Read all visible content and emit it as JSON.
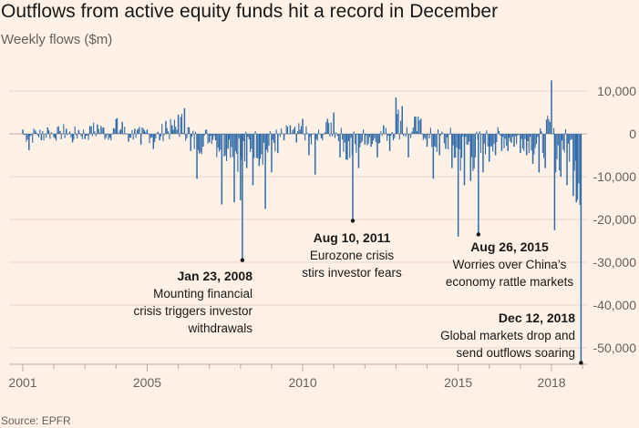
{
  "title": "Outflows from active equity funds hit a record in December",
  "subtitle": "Weekly flows ($m)",
  "source": "Source: EPFR",
  "colors": {
    "background": "#fff1e5",
    "bars": "#2e6aa8",
    "grid": "#e2d7cc",
    "text": "#33302e"
  },
  "chart_data": {
    "type": "bar",
    "title": "Outflows from active equity funds hit a record in December",
    "ylabel": "Weekly flows ($m)",
    "xlabel": "",
    "xlim": [
      2000.8,
      2019.0
    ],
    "ylim": [
      -52000,
      12000
    ],
    "grid": true,
    "ytick_values": [
      10000,
      0,
      -10000,
      -20000,
      -30000,
      -40000,
      -50000
    ],
    "ytick_labels": [
      "10,000",
      "0",
      "-10,000",
      "-20,000",
      "-30,000",
      "-40,000",
      "-50,000"
    ],
    "xtick_values": [
      2001,
      2005,
      2010,
      2015,
      2018
    ],
    "xtick_labels": [
      "2001",
      "2005",
      "2010",
      "2015",
      "2018"
    ],
    "x": [
      2001.0,
      2001.2,
      2001.4,
      2001.6,
      2001.8,
      2002.0,
      2002.2,
      2002.4,
      2002.6,
      2002.8,
      2003.0,
      2003.2,
      2003.4,
      2003.6,
      2003.8,
      2004.0,
      2004.2,
      2004.4,
      2004.6,
      2004.8,
      2005.0,
      2005.2,
      2005.4,
      2005.6,
      2005.8,
      2006.0,
      2006.2,
      2006.4,
      2006.6,
      2006.8,
      2007.0,
      2007.2,
      2007.4,
      2007.6,
      2007.8,
      2008.0,
      2008.06,
      2008.2,
      2008.4,
      2008.6,
      2008.8,
      2009.0,
      2009.2,
      2009.4,
      2009.6,
      2009.8,
      2010.0,
      2010.2,
      2010.4,
      2010.6,
      2010.8,
      2011.0,
      2011.2,
      2011.4,
      2011.61,
      2011.8,
      2012.0,
      2012.2,
      2012.4,
      2012.6,
      2012.8,
      2013.0,
      2013.2,
      2013.4,
      2013.6,
      2013.8,
      2014.0,
      2014.2,
      2014.4,
      2014.6,
      2014.8,
      2015.0,
      2015.2,
      2015.4,
      2015.65,
      2015.8,
      2016.0,
      2016.2,
      2016.4,
      2016.6,
      2016.8,
      2017.0,
      2017.2,
      2017.4,
      2017.6,
      2017.8,
      2018.0,
      2018.1,
      2018.3,
      2018.5,
      2018.7,
      2018.8,
      2018.95
    ],
    "y": [
      1000,
      -3800,
      800,
      -1500,
      1500,
      -800,
      700,
      1200,
      -2000,
      900,
      -1200,
      1800,
      2200,
      1500,
      -900,
      3500,
      2800,
      -1800,
      1200,
      -2500,
      1000,
      -3500,
      -1500,
      3000,
      2000,
      4500,
      6000,
      -4000,
      -10500,
      -3000,
      -2000,
      -1500,
      -16500,
      -3500,
      -16000,
      -15500,
      -29500,
      -8000,
      -12000,
      -7500,
      -17500,
      -9000,
      -4500,
      -1500,
      2000,
      -2000,
      3500,
      -5000,
      -9500,
      -1000,
      3500,
      5000,
      -5500,
      -6000,
      -20300,
      -8000,
      -2500,
      -3000,
      -5500,
      2000,
      -4000,
      8500,
      6500,
      -5500,
      4000,
      3500,
      -3000,
      -10500,
      -5000,
      -3500,
      -8000,
      -24000,
      -12000,
      -11000,
      -23500,
      -9000,
      -6500,
      -5000,
      -4000,
      -4000,
      -3000,
      -4500,
      -5000,
      -7000,
      -9000,
      -8000,
      12500,
      -22500,
      -10000,
      -12000,
      -14500,
      -16000,
      -53500
    ]
  },
  "annotations": [
    {
      "x": 2008.06,
      "y": -29500,
      "date": "Jan 23, 2008",
      "lines": [
        "Mounting financial",
        "crisis triggers investor",
        "withdrawals"
      ]
    },
    {
      "x": 2011.61,
      "y": -20300,
      "date": "Aug 10, 2011",
      "lines": [
        "Eurozone crisis",
        "stirs investor fears"
      ]
    },
    {
      "x": 2015.65,
      "y": -23500,
      "date": "Aug 26, 2015",
      "lines": [
        "Worries over China’s",
        "economy rattle markets"
      ]
    },
    {
      "x": 2018.95,
      "y": -53500,
      "date": "Dec 12, 2018",
      "lines": [
        "Global markets drop and",
        "send outflows soaring"
      ]
    }
  ]
}
